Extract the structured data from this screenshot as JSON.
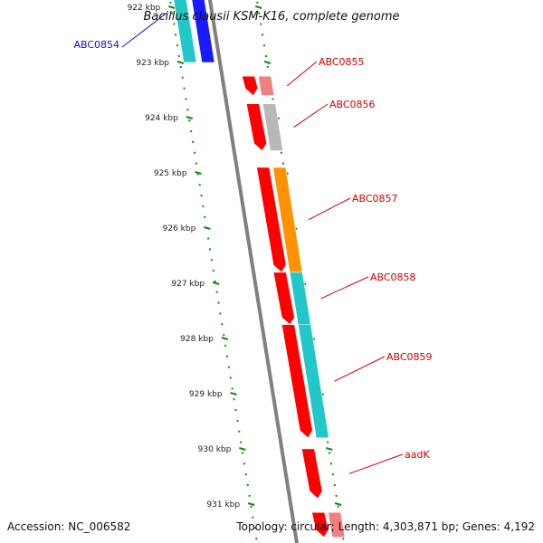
{
  "title": "Bacillus clausii KSM-K16, complete genome",
  "accession": "Accession: NC_006582",
  "topology": "Topology: circular; Length: 4,303,871 bp; Genes: 4,192",
  "colors": {
    "backbone": "#808080",
    "tick": "#138a13",
    "label_forward": "#1010c8",
    "label_reverse": "#d00000",
    "cds_red": "#ff0000",
    "cyan": "#22c8c8",
    "blue": "#1a1aff",
    "orange": "#ff9200",
    "pink": "#f08080",
    "gray": "#b8b8b8"
  },
  "kbp_ticks": [
    {
      "kbp": 922,
      "label": "922 kbp"
    },
    {
      "kbp": 923,
      "label": "923 kbp"
    },
    {
      "kbp": 924,
      "label": "924 kbp"
    },
    {
      "kbp": 925,
      "label": "925 kbp"
    },
    {
      "kbp": 926,
      "label": "926 kbp"
    },
    {
      "kbp": 927,
      "label": "927 kbp"
    },
    {
      "kbp": 928,
      "label": "928 kbp"
    },
    {
      "kbp": 929,
      "label": "929 kbp"
    },
    {
      "kbp": 930,
      "label": "930 kbp"
    },
    {
      "kbp": 931,
      "label": "931 kbp"
    }
  ],
  "genes": [
    {
      "name": "ABC0854",
      "strand": "forward",
      "start_kbp": 921.6,
      "end_kbp": 923.0,
      "color_key": "blue",
      "cog_color_key": "cyan"
    },
    {
      "name": "ABC0855",
      "strand": "reverse",
      "start_kbp": 923.25,
      "end_kbp": 923.6,
      "color_key": "cds_red",
      "cog_color_key": "pink"
    },
    {
      "name": "ABC0856",
      "strand": "reverse",
      "start_kbp": 923.75,
      "end_kbp": 924.6,
      "color_key": "cds_red",
      "cog_color_key": "gray"
    },
    {
      "name": "ABC0857",
      "strand": "reverse",
      "start_kbp": 924.9,
      "end_kbp": 926.8,
      "color_key": "cds_red",
      "cog_color_key": "orange"
    },
    {
      "name": "ABC0858",
      "strand": "reverse",
      "start_kbp": 926.8,
      "end_kbp": 927.75,
      "color_key": "cds_red",
      "cog_color_key": "cyan"
    },
    {
      "name": "ABC0859",
      "strand": "reverse",
      "start_kbp": 927.75,
      "end_kbp": 929.8,
      "color_key": "cds_red",
      "cog_color_key": "cyan"
    },
    {
      "name": "aadK",
      "strand": "reverse",
      "start_kbp": 930.0,
      "end_kbp": 930.9,
      "color_key": "cds_red",
      "cog_color_key": ""
    },
    {
      "name": "",
      "strand": "reverse",
      "start_kbp": 931.15,
      "end_kbp": 931.6,
      "color_key": "cds_red",
      "cog_color_key": "pink"
    }
  ]
}
